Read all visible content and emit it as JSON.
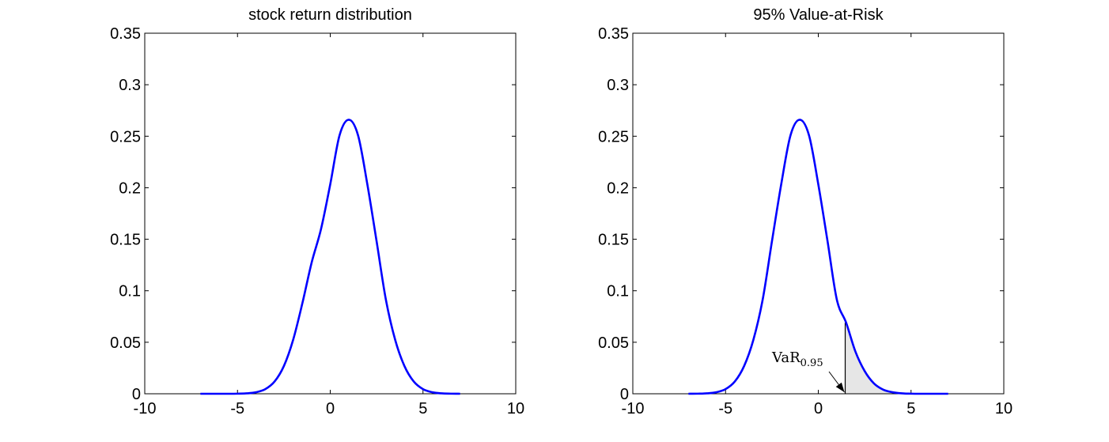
{
  "chart_data": [
    {
      "type": "line",
      "title": "stock return distribution",
      "xlabel": "",
      "ylabel": "",
      "xlim": [
        -10,
        10
      ],
      "ylim": [
        0,
        0.35
      ],
      "xticks": [
        -10,
        -5,
        0,
        5,
        10
      ],
      "yticks": [
        0,
        0.05,
        0.1,
        0.15,
        0.2,
        0.25,
        0.3,
        0.35
      ],
      "xtick_labels": [
        "-10",
        "-5",
        "0",
        "5",
        "10"
      ],
      "ytick_labels": [
        "0",
        "0.05",
        "0.1",
        "0.15",
        "0.2",
        "0.25",
        "0.3",
        "0.35"
      ],
      "grid": false,
      "series": [
        {
          "color": "#0000ff",
          "x": [
            -7,
            -6.5,
            -6,
            -5.5,
            -5,
            -4.5,
            -4,
            -3.5,
            -3,
            -2.5,
            -2,
            -1.5,
            -1,
            -0.5,
            0,
            0.5,
            1,
            1.5,
            2,
            2.5,
            3,
            3.5,
            4,
            4.5,
            5,
            5.5,
            6,
            6.5,
            7
          ],
          "y": [
            0.0,
            0.0,
            0.0,
            0.0,
            0.0001,
            0.0004,
            0.0015,
            0.0045,
            0.0119,
            0.0269,
            0.0524,
            0.0881,
            0.1276,
            0.1597,
            0.2033,
            0.2508,
            0.266,
            0.2508,
            0.2033,
            0.1479,
            0.0913,
            0.0524,
            0.0269,
            0.0119,
            0.0045,
            0.0015,
            0.0004,
            0.0001,
            0.0
          ]
        }
      ]
    },
    {
      "type": "line",
      "title": "95% Value-at-Risk",
      "xlabel": "",
      "ylabel": "",
      "xlim": [
        -10,
        10
      ],
      "ylim": [
        0,
        0.35
      ],
      "xticks": [
        -10,
        -5,
        0,
        5,
        10
      ],
      "yticks": [
        0,
        0.05,
        0.1,
        0.15,
        0.2,
        0.25,
        0.3,
        0.35
      ],
      "xtick_labels": [
        "-10",
        "-5",
        "0",
        "5",
        "10"
      ],
      "ytick_labels": [
        "0",
        "0.05",
        "0.1",
        "0.15",
        "0.2",
        "0.25",
        "0.3",
        "0.35"
      ],
      "grid": false,
      "series": [
        {
          "color": "#0000ff",
          "x": [
            -7,
            -6.5,
            -6,
            -5.5,
            -5,
            -4.5,
            -4,
            -3.5,
            -3,
            -2.5,
            -2,
            -1.5,
            -1,
            -0.5,
            0,
            0.5,
            1,
            1.5,
            2,
            2.5,
            3,
            3.5,
            4,
            4.5,
            5,
            5.5,
            6,
            6.5,
            7
          ],
          "y": [
            0.0,
            0.0001,
            0.0004,
            0.0015,
            0.0045,
            0.0119,
            0.0269,
            0.0524,
            0.0913,
            0.1479,
            0.2033,
            0.2508,
            0.266,
            0.2508,
            0.2033,
            0.1479,
            0.0913,
            0.069,
            0.041,
            0.022,
            0.01,
            0.004,
            0.0015,
            0.0004,
            0.0001,
            0.0,
            0.0,
            0.0,
            0.0
          ]
        }
      ],
      "shaded_region": {
        "x_from": 1.45,
        "x_to": 7,
        "color": "#e6e6e6"
      },
      "vline": {
        "x": 1.45,
        "y_top": 0.069
      },
      "annotation": {
        "text": "VaR",
        "subscript": "0.95",
        "arrow_target": [
          1.45,
          0.0
        ]
      }
    }
  ]
}
